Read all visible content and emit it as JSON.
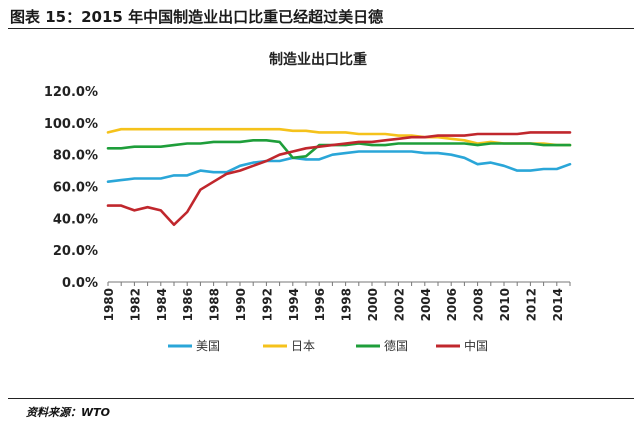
{
  "figure": {
    "caption": "图表 15：2015 年中国制造业出口比重已经超过美日德",
    "source": "资料来源：WTO"
  },
  "chart_data": {
    "type": "line",
    "title": "制造业出口比重",
    "xlabel": "",
    "ylabel": "",
    "x": [
      1980,
      1981,
      1982,
      1983,
      1984,
      1985,
      1986,
      1987,
      1988,
      1989,
      1990,
      1991,
      1992,
      1993,
      1994,
      1995,
      1996,
      1997,
      1998,
      1999,
      2000,
      2001,
      2002,
      2003,
      2004,
      2005,
      2006,
      2007,
      2008,
      2009,
      2010,
      2011,
      2012,
      2013,
      2014,
      2015
    ],
    "xticks": [
      "1980",
      "1982",
      "1984",
      "1986",
      "1988",
      "1990",
      "1992",
      "1994",
      "1996",
      "1998",
      "2000",
      "2002",
      "2004",
      "2006",
      "2008",
      "2010",
      "2012",
      "2014"
    ],
    "yticks": [
      "0.0%",
      "20.0%",
      "40.0%",
      "60.0%",
      "80.0%",
      "100.0%",
      "120.0%"
    ],
    "ylim": [
      0,
      120
    ],
    "xlim": [
      1980,
      2015
    ],
    "grid": false,
    "legend_position": "bottom",
    "series": [
      {
        "name": "美国",
        "color": "#2aa6d8",
        "values": [
          63,
          64,
          65,
          65,
          65,
          67,
          67,
          70,
          69,
          69,
          73,
          75,
          76,
          76,
          78,
          77,
          77,
          80,
          81,
          82,
          82,
          82,
          82,
          82,
          81,
          81,
          80,
          78,
          74,
          75,
          73,
          70,
          70,
          71,
          71,
          74
        ]
      },
      {
        "name": "日本",
        "color": "#f5c21b",
        "values": [
          94,
          96,
          96,
          96,
          96,
          96,
          96,
          96,
          96,
          96,
          96,
          96,
          96,
          96,
          95,
          95,
          94,
          94,
          94,
          93,
          93,
          93,
          92,
          92,
          91,
          91,
          90,
          89,
          87,
          88,
          87,
          87,
          87,
          87,
          86,
          86
        ]
      },
      {
        "name": "德国",
        "color": "#1e9e3a",
        "values": [
          84,
          84,
          85,
          85,
          85,
          86,
          87,
          87,
          88,
          88,
          88,
          89,
          89,
          88,
          78,
          79,
          86,
          86,
          86,
          87,
          86,
          86,
          87,
          87,
          87,
          87,
          87,
          87,
          86,
          87,
          87,
          87,
          87,
          86,
          86,
          86
        ]
      },
      {
        "name": "中国",
        "color": "#c0272d",
        "values": [
          48,
          48,
          45,
          47,
          45,
          36,
          44,
          58,
          63,
          68,
          70,
          73,
          76,
          80,
          82,
          84,
          85,
          86,
          87,
          88,
          88,
          89,
          90,
          91,
          91,
          92,
          92,
          92,
          93,
          93,
          93,
          93,
          94,
          94,
          94,
          94
        ]
      }
    ]
  }
}
